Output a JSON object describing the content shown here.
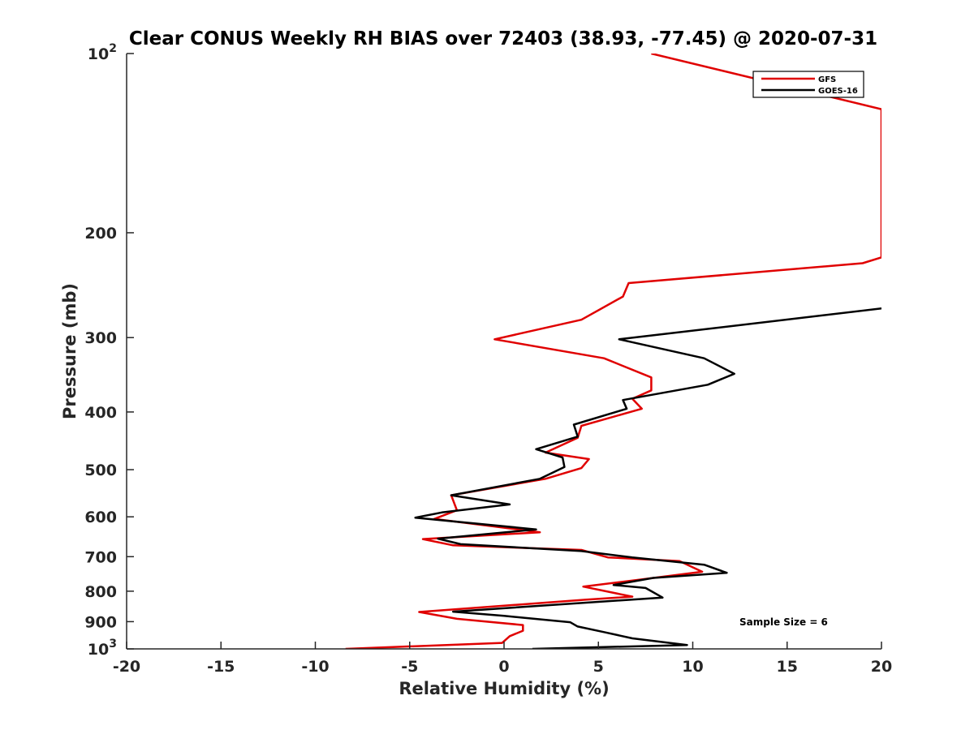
{
  "chart_data": {
    "type": "line",
    "title": "Clear CONUS Weekly RH BIAS over 72403 (38.93, -77.45) @ 2020-07-31",
    "xlabel": "Relative Humidity (%)",
    "ylabel": "Pressure (mb)",
    "xlim": [
      -20,
      20
    ],
    "ylim": [
      100,
      1000
    ],
    "y_scale": "log",
    "y_reversed": true,
    "xticks": [
      "-20",
      "-15",
      "-10",
      "-5",
      "0",
      "5",
      "10",
      "15",
      "20"
    ],
    "yticks": [
      {
        "value": 100,
        "base": "10",
        "exp": "2"
      },
      {
        "value": 200,
        "label": "200"
      },
      {
        "value": 300,
        "label": "300"
      },
      {
        "value": 400,
        "label": "400"
      },
      {
        "value": 500,
        "label": "500"
      },
      {
        "value": 600,
        "label": "600"
      },
      {
        "value": 700,
        "label": "700"
      },
      {
        "value": 800,
        "label": "800"
      },
      {
        "value": 900,
        "label": "900"
      },
      {
        "value": 1000,
        "base": "10",
        "exp": "3"
      }
    ],
    "legend_position": "top-right",
    "annotation": "Sample Size = 6",
    "series": [
      {
        "name": "GFS",
        "color": "#e00000",
        "points": [
          [
            7.8,
            100
          ],
          [
            20.0,
            124
          ],
          [
            20.0,
            220
          ],
          [
            19.0,
            225
          ],
          [
            6.6,
            243
          ],
          [
            6.3,
            256
          ],
          [
            4.1,
            280
          ],
          [
            -0.5,
            302
          ],
          [
            5.3,
            325
          ],
          [
            7.8,
            350
          ],
          [
            7.8,
            368
          ],
          [
            6.8,
            380
          ],
          [
            7.3,
            395
          ],
          [
            4.1,
            422
          ],
          [
            3.9,
            442
          ],
          [
            2.2,
            468
          ],
          [
            4.5,
            480
          ],
          [
            4.1,
            497
          ],
          [
            2.2,
            518
          ],
          [
            -2.8,
            552
          ],
          [
            -2.5,
            585
          ],
          [
            -3.7,
            605
          ],
          [
            1.9,
            637
          ],
          [
            -4.3,
            654
          ],
          [
            -2.7,
            670
          ],
          [
            4.1,
            682
          ],
          [
            5.5,
            702
          ],
          [
            9.3,
            712
          ],
          [
            10.5,
            742
          ],
          [
            7.2,
            765
          ],
          [
            4.2,
            786
          ],
          [
            6.8,
            817
          ],
          [
            4.3,
            827
          ],
          [
            -4.5,
            867
          ],
          [
            -2.5,
            890
          ],
          [
            1.0,
            912
          ],
          [
            1.0,
            932
          ],
          [
            0.3,
            952
          ],
          [
            -0.1,
            977
          ],
          [
            -8.4,
            1000
          ]
        ]
      },
      {
        "name": "GOES-16",
        "color": "#000000",
        "points": [
          [
            20.0,
            268
          ],
          [
            6.1,
            302
          ],
          [
            10.6,
            325
          ],
          [
            12.2,
            345
          ],
          [
            10.8,
            360
          ],
          [
            6.3,
            382
          ],
          [
            6.5,
            395
          ],
          [
            3.7,
            420
          ],
          [
            3.9,
            440
          ],
          [
            1.7,
            462
          ],
          [
            3.1,
            477
          ],
          [
            3.2,
            495
          ],
          [
            1.9,
            518
          ],
          [
            -2.8,
            552
          ],
          [
            0.3,
            572
          ],
          [
            -3.3,
            590
          ],
          [
            -4.7,
            602
          ],
          [
            1.7,
            630
          ],
          [
            -3.5,
            653
          ],
          [
            -2.3,
            667
          ],
          [
            4.1,
            685
          ],
          [
            6.8,
            702
          ],
          [
            10.6,
            722
          ],
          [
            11.8,
            745
          ],
          [
            7.9,
            760
          ],
          [
            5.8,
            781
          ],
          [
            7.5,
            790
          ],
          [
            8.4,
            820
          ],
          [
            -2.7,
            866
          ],
          [
            0.0,
            880
          ],
          [
            3.5,
            902
          ],
          [
            3.9,
            917
          ],
          [
            5.3,
            937
          ],
          [
            6.8,
            960
          ],
          [
            9.7,
            985
          ],
          [
            1.5,
            1000
          ]
        ]
      }
    ]
  }
}
